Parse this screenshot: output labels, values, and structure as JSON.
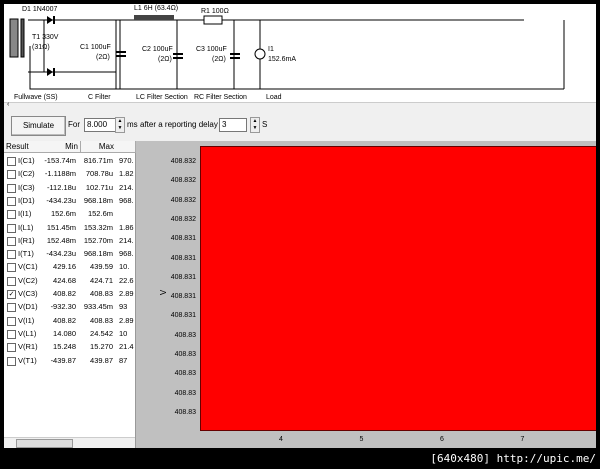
{
  "circuit": {
    "labels": {
      "d1": "D1 1N4007",
      "t1a": "T1 330V",
      "t1b": "(31Ω)",
      "c1a": "C1 100uF",
      "c1b": "(2Ω)",
      "l1": "L1 6H (63.4Ω)",
      "c2a": "C2 100uF",
      "c2b": "(2Ω)",
      "r1": "R1 100Ω",
      "c3a": "C3 100uF",
      "c3b": "(2Ω)",
      "i1a": "I1",
      "i1b": "152.6mA"
    },
    "sections": [
      "Fullwave (SS)",
      "C Filter",
      "LC Filter Section",
      "RC Filter Section",
      "Load"
    ]
  },
  "toolbar": {
    "simulate": "Simulate",
    "for": "For",
    "duration": "8.000",
    "ms": "ms",
    "after": "after a reporting delay of",
    "delay": "3",
    "s": "S"
  },
  "table": {
    "headers": [
      "Result",
      "Min",
      "Max"
    ],
    "rows": [
      {
        "name": "I(C1)",
        "min": "-153.74m",
        "max": "816.71m",
        "extra": "970.",
        "checked": false
      },
      {
        "name": "I(C2)",
        "min": "-1.1188m",
        "max": "708.78u",
        "extra": "1.82",
        "checked": false
      },
      {
        "name": "I(C3)",
        "min": "-112.18u",
        "max": "102.71u",
        "extra": "214.",
        "checked": false
      },
      {
        "name": "I(D1)",
        "min": "-434.23u",
        "max": "968.18m",
        "extra": "968.",
        "checked": false
      },
      {
        "name": "I(I1)",
        "min": "152.6m",
        "max": "152.6m",
        "extra": "",
        "checked": false
      },
      {
        "name": "I(L1)",
        "min": "151.45m",
        "max": "153.32m",
        "extra": "1.86",
        "checked": false
      },
      {
        "name": "I(R1)",
        "min": "152.48m",
        "max": "152.70m",
        "extra": "214.",
        "checked": false
      },
      {
        "name": "I(T1)",
        "min": "-434.23u",
        "max": "968.18m",
        "extra": "968.",
        "checked": false
      },
      {
        "name": "V(C1)",
        "min": "429.16",
        "max": "439.59",
        "extra": "10.",
        "checked": false
      },
      {
        "name": "V(C2)",
        "min": "424.68",
        "max": "424.71",
        "extra": "22.6",
        "checked": false
      },
      {
        "name": "V(C3)",
        "min": "408.82",
        "max": "408.83",
        "extra": "2.89",
        "checked": true
      },
      {
        "name": "V(D1)",
        "min": "-932.30",
        "max": "933.45m",
        "extra": "93",
        "checked": false
      },
      {
        "name": "V(I1)",
        "min": "408.82",
        "max": "408.83",
        "extra": "2.89",
        "checked": false
      },
      {
        "name": "V(L1)",
        "min": "14.080",
        "max": "24.542",
        "extra": "10",
        "checked": false
      },
      {
        "name": "V(R1)",
        "min": "15.248",
        "max": "15.270",
        "extra": "21.4",
        "checked": false
      },
      {
        "name": "V(T1)",
        "min": "-439.87",
        "max": "439.87",
        "extra": "87",
        "checked": false
      }
    ]
  },
  "chart_data": {
    "type": "area",
    "ylabel": "V",
    "fill_color": "#ff0000",
    "background": "#c0c0c0",
    "yticks": [
      "408.832",
      "408.832",
      "408.832",
      "408.832",
      "408.831",
      "408.831",
      "408.831",
      "408.831",
      "408.831",
      "408.83",
      "408.83",
      "408.83",
      "408.83",
      "408.83"
    ],
    "xticks": [
      "4",
      "5",
      "6",
      "7"
    ]
  },
  "watermark": "[640x480] http://upic.me/"
}
